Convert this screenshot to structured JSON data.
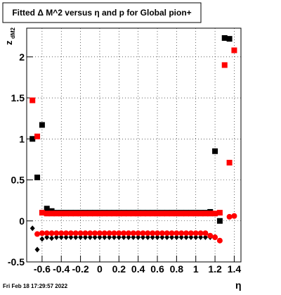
{
  "chart_data": {
    "type": "scatter",
    "title": "Fitted Δ M^2 versus η and p for Global pion+",
    "y_label": "z",
    "y_label_sub": "dM2",
    "x_label": "η",
    "timestamp": "Fri Feb 18 17:29:57 2022",
    "x": [
      -0.7,
      -0.65,
      -0.6,
      -0.55,
      -0.5,
      -0.45,
      -0.4,
      -0.35,
      -0.3,
      -0.25,
      -0.2,
      -0.15,
      -0.1,
      -0.05,
      0,
      0.05,
      0.1,
      0.15,
      0.2,
      0.25,
      0.3,
      0.35,
      0.4,
      0.45,
      0.5,
      0.55,
      0.6,
      0.65,
      0.7,
      0.75,
      0.8,
      0.85,
      0.9,
      0.95,
      1,
      1.05,
      1.1,
      1.15,
      1.2,
      1.25,
      1.3,
      1.35,
      1.4
    ],
    "series": [
      {
        "color": "#000000",
        "marker": "square",
        "values": [
          1.0,
          0.53,
          1.17,
          0.15,
          0.12,
          0.1,
          0.1,
          0.1,
          0.1,
          0.1,
          0.1,
          0.1,
          0.1,
          0.1,
          0.1,
          0.1,
          0.1,
          0.1,
          0.1,
          0.1,
          0.1,
          0.1,
          0.1,
          0.1,
          0.1,
          0.1,
          0.1,
          0.1,
          0.1,
          0.1,
          0.1,
          0.1,
          0.1,
          0.1,
          0.1,
          0.1,
          0.1,
          0.11,
          0.85,
          0.0,
          2.23,
          2.22,
          null
        ]
      },
      {
        "color": "#ff0000",
        "marker": "square",
        "values": [
          1.47,
          1.03,
          0.1,
          0.09,
          0.09,
          0.09,
          0.09,
          0.09,
          0.09,
          0.09,
          0.09,
          0.09,
          0.09,
          0.09,
          0.09,
          0.09,
          0.09,
          0.09,
          0.09,
          0.09,
          0.09,
          0.09,
          0.09,
          0.09,
          0.09,
          0.09,
          0.09,
          0.09,
          0.09,
          0.09,
          0.09,
          0.09,
          0.09,
          0.09,
          0.09,
          0.09,
          0.09,
          0.09,
          0.09,
          0.1,
          1.9,
          0.71,
          2.08
        ]
      },
      {
        "color": "#000000",
        "marker": "diamond",
        "values": [
          -0.09,
          -0.35,
          -0.22,
          -0.2,
          -0.21,
          -0.2,
          -0.2,
          -0.2,
          -0.2,
          -0.2,
          -0.2,
          -0.2,
          -0.2,
          -0.2,
          -0.2,
          -0.2,
          -0.2,
          -0.2,
          -0.2,
          -0.2,
          -0.2,
          -0.2,
          -0.2,
          -0.2,
          -0.2,
          -0.2,
          -0.2,
          -0.2,
          -0.2,
          -0.2,
          -0.2,
          -0.2,
          -0.2,
          -0.2,
          -0.2,
          -0.2,
          -0.2,
          -0.2,
          -0.2,
          null,
          null,
          null,
          null
        ]
      },
      {
        "color": "#ff0000",
        "marker": "circle",
        "values": [
          null,
          -0.16,
          -0.15,
          -0.15,
          -0.15,
          -0.15,
          -0.15,
          -0.15,
          -0.15,
          -0.15,
          -0.15,
          -0.15,
          -0.15,
          -0.15,
          -0.15,
          -0.15,
          -0.15,
          -0.15,
          -0.15,
          -0.15,
          -0.15,
          -0.15,
          -0.15,
          -0.15,
          -0.15,
          -0.15,
          -0.15,
          -0.15,
          -0.15,
          -0.15,
          -0.15,
          -0.15,
          -0.15,
          -0.15,
          -0.15,
          -0.15,
          -0.15,
          -0.18,
          -0.2,
          -0.24,
          null,
          0.05,
          0.06
        ]
      }
    ],
    "xlim": [
      -0.76,
      1.47
    ],
    "ylim": [
      -0.5,
      2.35
    ],
    "xticks": [
      -0.6,
      -0.4,
      -0.2,
      0,
      0.2,
      0.4,
      0.6,
      0.8,
      1,
      1.2,
      1.4
    ],
    "yticks": [
      -0.5,
      0,
      0.5,
      1,
      1.5,
      2
    ],
    "grid": true
  }
}
